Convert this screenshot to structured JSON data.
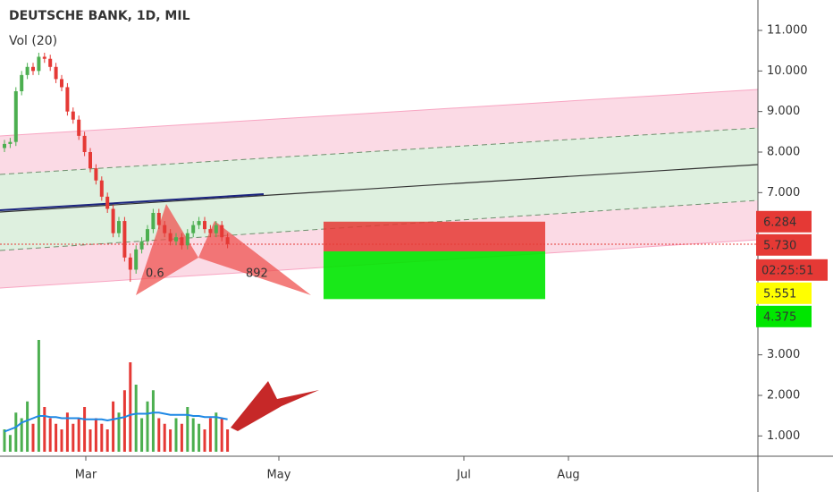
{
  "chart_data": {
    "type": "candlestick",
    "title": "DEUTSCHE BANK, 1D, MIL",
    "subtitle": "Vol (20)",
    "ylim": [
      0.5,
      11.75
    ],
    "yticks": [
      {
        "value": 11,
        "label": "11.000"
      },
      {
        "value": 10,
        "label": "10.000"
      },
      {
        "value": 9,
        "label": "9.000"
      },
      {
        "value": 8,
        "label": "8.000"
      },
      {
        "value": 7,
        "label": "7.000"
      },
      {
        "value": 3,
        "label": "3.000"
      },
      {
        "value": 2,
        "label": "2.000"
      },
      {
        "value": 1,
        "label": "1.000"
      }
    ],
    "x_labels": [
      "Mar",
      "May",
      "Jul",
      "Aug"
    ],
    "open": [
      8.1,
      8.2,
      8.25,
      9.5,
      9.9,
      10.1,
      10.0,
      10.35,
      10.3,
      10.1,
      9.8,
      9.6,
      9.0,
      8.8,
      8.4,
      8.0,
      7.6,
      7.3,
      6.9,
      6.6,
      6.0,
      6.3,
      5.4,
      5.1,
      5.6,
      5.8,
      6.1,
      6.5,
      6.2,
      6.0,
      5.8,
      5.9,
      5.7,
      6.0,
      6.2,
      6.3,
      6.1,
      6.0,
      6.2,
      5.9
    ],
    "high": [
      8.3,
      8.35,
      9.6,
      10.0,
      10.2,
      10.2,
      10.45,
      10.45,
      10.4,
      10.2,
      9.9,
      9.7,
      9.1,
      8.9,
      8.5,
      8.1,
      7.7,
      7.4,
      7.0,
      6.7,
      6.4,
      6.4,
      5.5,
      5.7,
      5.9,
      6.2,
      6.6,
      6.6,
      6.3,
      6.1,
      6.0,
      6.0,
      6.1,
      6.3,
      6.4,
      6.4,
      6.2,
      6.3,
      6.3,
      6.0
    ],
    "low": [
      8.0,
      8.1,
      8.15,
      9.4,
      9.8,
      9.9,
      9.9,
      10.2,
      10.0,
      9.7,
      9.5,
      8.9,
      8.7,
      8.3,
      7.9,
      7.5,
      7.2,
      6.8,
      6.5,
      5.9,
      5.9,
      5.3,
      4.8,
      5.0,
      5.5,
      5.7,
      6.0,
      6.1,
      5.9,
      5.7,
      5.7,
      5.6,
      5.6,
      5.9,
      6.1,
      6.0,
      5.9,
      5.9,
      5.8,
      5.63
    ],
    "close": [
      8.2,
      8.25,
      9.5,
      9.9,
      10.1,
      10.0,
      10.35,
      10.3,
      10.1,
      9.8,
      9.6,
      9.0,
      8.8,
      8.4,
      8.0,
      7.6,
      7.3,
      6.9,
      6.6,
      6.0,
      6.3,
      5.4,
      5.1,
      5.6,
      5.8,
      6.1,
      6.5,
      6.2,
      6.0,
      5.8,
      5.9,
      5.7,
      6.0,
      6.2,
      6.3,
      6.1,
      6.0,
      6.2,
      5.9,
      5.73
    ],
    "volume": [
      20,
      15,
      35,
      30,
      45,
      25,
      100,
      40,
      30,
      25,
      20,
      35,
      25,
      30,
      40,
      20,
      30,
      25,
      20,
      45,
      35,
      55,
      80,
      60,
      30,
      45,
      55,
      30,
      25,
      20,
      30,
      25,
      40,
      30,
      25,
      20,
      30,
      35,
      30,
      20
    ],
    "volume_ma": [
      18,
      20,
      22,
      26,
      28,
      30,
      32,
      32,
      31,
      31,
      30,
      30,
      30,
      30,
      29,
      29,
      29,
      29,
      28,
      29,
      30,
      31,
      33,
      34,
      34,
      34,
      35,
      35,
      34,
      33,
      33,
      33,
      33,
      32,
      32,
      31,
      31,
      31,
      30,
      29
    ],
    "price_labels": [
      6.284,
      {
        "value": 5.73,
        "label": "5.730"
      },
      5.551,
      4.375
    ],
    "countdown": "02:25:51",
    "pattern_labels": [
      "0.6",
      "892"
    ],
    "up_color": "#4caf50",
    "down_color": "#e53935"
  }
}
